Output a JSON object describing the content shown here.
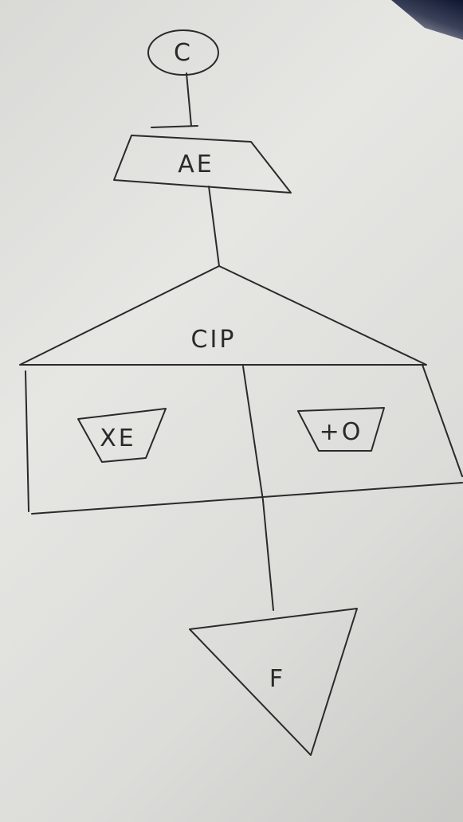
{
  "diagram": {
    "start_label": "C",
    "process_label": "AE",
    "decision_label": "CIP",
    "left_branch_label": "XE",
    "right_branch_label": "+O",
    "end_label": "F"
  }
}
